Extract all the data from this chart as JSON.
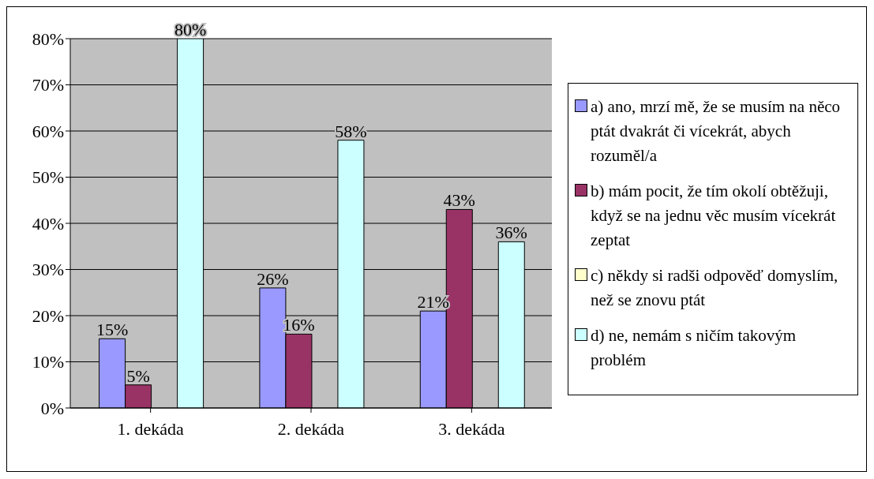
{
  "chart_data": {
    "type": "bar",
    "categories": [
      "1. dekáda",
      "2. dekáda",
      "3. dekáda"
    ],
    "series": [
      {
        "name": "a) ano, mrzí mě, že se musím na něco ptát dvakrát či vícekrát, abych rozuměl/a",
        "color": "#9999ff",
        "values": [
          15,
          26,
          21
        ],
        "value_labels": [
          "15%",
          "26%",
          "21%"
        ]
      },
      {
        "name": "b) mám pocit, že tím okolí obtěžuji, když se na jednu věc musím vícekrát zeptat",
        "color": "#993366",
        "values": [
          5,
          16,
          43
        ],
        "value_labels": [
          "5%",
          "16%",
          "43%"
        ]
      },
      {
        "name": "c) někdy si radši odpověď domyslím, než se znovu ptát",
        "color": "#ffffcc",
        "values": [
          0,
          0,
          0
        ],
        "value_labels": [
          null,
          null,
          null
        ]
      },
      {
        "name": "d) ne, nemám s ničím takovým problém",
        "color": "#ccffff",
        "values": [
          80,
          58,
          36
        ],
        "value_labels": [
          "80%",
          "58%",
          "36%"
        ]
      }
    ],
    "ylim": [
      0,
      80
    ],
    "yticks": [
      {
        "value": 0,
        "label": "0%"
      },
      {
        "value": 10,
        "label": "10%"
      },
      {
        "value": 20,
        "label": "20%"
      },
      {
        "value": 30,
        "label": "30%"
      },
      {
        "value": 40,
        "label": "40%"
      },
      {
        "value": 50,
        "label": "50%"
      },
      {
        "value": 60,
        "label": "60%"
      },
      {
        "value": 70,
        "label": "70%"
      },
      {
        "value": 80,
        "label": "80%"
      }
    ],
    "grid": "y",
    "legend": "right"
  }
}
